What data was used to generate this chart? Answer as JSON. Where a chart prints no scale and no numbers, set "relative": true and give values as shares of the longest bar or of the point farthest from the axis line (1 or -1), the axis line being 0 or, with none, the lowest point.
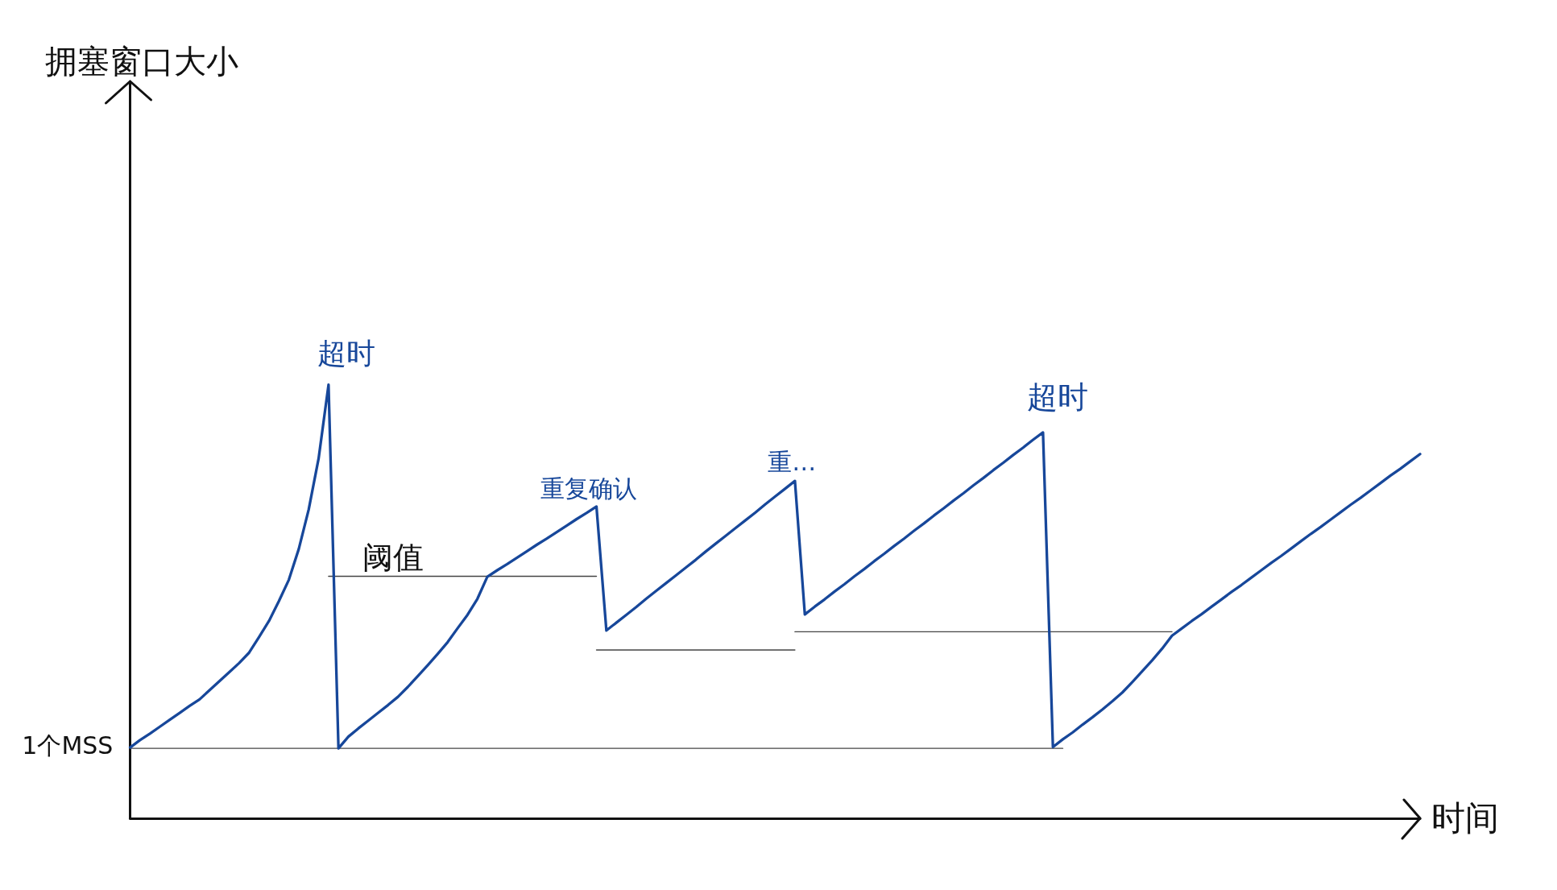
{
  "chart_data": {
    "type": "line",
    "xlabel": "时间",
    "relative": true,
    "marker": "none",
    "categories": [
      null,
      null,
      null,
      null,
      null,
      null,
      null,
      null,
      null,
      null,
      null,
      null,
      null,
      null,
      null,
      null,
      null,
      null,
      null,
      null,
      null,
      null,
      null,
      null,
      null,
      null,
      null,
      null,
      null,
      null,
      null,
      null,
      null,
      null,
      null,
      null,
      null,
      null,
      null,
      null,
      null,
      null,
      null,
      null,
      null,
      null,
      null,
      null,
      null,
      null,
      null,
      null,
      null,
      null,
      null,
      null,
      null,
      null,
      null,
      null,
      null,
      null,
      null,
      null,
      null,
      null,
      null,
      null,
      null,
      null,
      null,
      null,
      null,
      null,
      null,
      null,
      null,
      null,
      null,
      null,
      null,
      null,
      null,
      null,
      null,
      null,
      null,
      null,
      null,
      null,
      null,
      null,
      null,
      null,
      null,
      null,
      null,
      null,
      null,
      null,
      null,
      null,
      null,
      null,
      null,
      null,
      null,
      null,
      null,
      null,
      null,
      null,
      null,
      null,
      null,
      null,
      null,
      null,
      null,
      null,
      null,
      null,
      null,
      null,
      null,
      null,
      null,
      null,
      null,
      null,
      null
    ],
    "series": [
      {
        "color": "#17479a",
        "values": [
          0.163,
          0.18,
          0.195,
          0.211,
          0.227,
          0.243,
          0.259,
          0.274,
          0.295,
          0.316,
          0.337,
          0.358,
          0.382,
          0.418,
          0.455,
          0.501,
          0.55,
          0.621,
          0.712,
          0.83,
          1.0,
          0.161,
          0.188,
          0.207,
          0.225,
          0.243,
          0.261,
          0.28,
          0.303,
          0.328,
          0.353,
          0.379,
          0.406,
          0.438,
          0.469,
          0.506,
          0.557,
          0.572,
          0.586,
          0.601,
          0.616,
          0.631,
          0.645,
          0.66,
          0.675,
          0.69,
          0.704,
          0.719,
          0.433,
          0.451,
          0.469,
          0.487,
          0.506,
          0.524,
          0.542,
          0.56,
          0.578,
          0.596,
          0.615,
          0.633,
          0.651,
          0.669,
          0.687,
          0.705,
          0.724,
          0.742,
          0.76,
          0.778,
          0.47,
          0.488,
          0.505,
          0.523,
          0.54,
          0.558,
          0.575,
          0.593,
          0.61,
          0.628,
          0.645,
          0.663,
          0.68,
          0.698,
          0.715,
          0.733,
          0.75,
          0.768,
          0.785,
          0.803,
          0.82,
          0.838,
          0.855,
          0.873,
          0.89,
          0.164,
          0.182,
          0.198,
          0.216,
          0.233,
          0.251,
          0.27,
          0.29,
          0.314,
          0.339,
          0.364,
          0.391,
          0.421,
          0.438,
          0.455,
          0.471,
          0.488,
          0.505,
          0.522,
          0.538,
          0.555,
          0.572,
          0.589,
          0.605,
          0.622,
          0.639,
          0.656,
          0.672,
          0.689,
          0.706,
          0.723,
          0.739,
          0.756,
          0.773,
          0.79,
          0.806,
          0.823,
          0.84
        ]
      },
      {
        "color": "#444444",
        "values": [
          0.161,
          0.161,
          0.161,
          0.161,
          0.161,
          0.161,
          0.161,
          0.161,
          0.161,
          0.161,
          0.161,
          0.161,
          0.161,
          0.161,
          0.161,
          0.161,
          0.161,
          0.161,
          0.161,
          0.161,
          0.161,
          0.161,
          0.161,
          0.161,
          0.161,
          0.161,
          0.161,
          0.161,
          0.161,
          0.161,
          0.161,
          0.161,
          0.161,
          0.161,
          0.161,
          0.161,
          0.161,
          0.161,
          0.161,
          0.161,
          0.161,
          0.161,
          0.161,
          0.161,
          0.161,
          0.161,
          0.161,
          0.161,
          0.161,
          0.161,
          0.161,
          0.161,
          0.161,
          0.161,
          0.161,
          0.161,
          0.161,
          0.161,
          0.161,
          0.161,
          0.161,
          0.161,
          0.161,
          0.161,
          0.161,
          0.161,
          0.161,
          0.161,
          0.161,
          0.161,
          0.161,
          0.161,
          0.161,
          0.161,
          0.161,
          0.161,
          0.161,
          0.161,
          0.161,
          0.161,
          0.161,
          0.161,
          0.161,
          0.161,
          0.161,
          0.161,
          0.161,
          0.161,
          0.161,
          0.161,
          0.161,
          0.161,
          0.161,
          0.161,
          0.161,
          null,
          null,
          null,
          null,
          null,
          null,
          null,
          null,
          null,
          null,
          null,
          null,
          null,
          null,
          null,
          null,
          null,
          null,
          null,
          null,
          null,
          null,
          null,
          null,
          null,
          null,
          null,
          null,
          null,
          null,
          null,
          null,
          null,
          null,
          null,
          null
        ]
      },
      {
        "color": "#444444",
        "values": [
          null,
          null,
          null,
          null,
          null,
          null,
          null,
          null,
          null,
          null,
          null,
          null,
          null,
          null,
          null,
          null,
          null,
          null,
          null,
          null,
          0.558,
          0.558,
          0.558,
          0.558,
          0.558,
          0.558,
          0.558,
          0.558,
          0.558,
          0.558,
          0.558,
          0.558,
          0.558,
          0.558,
          0.558,
          0.558,
          0.558,
          0.558,
          0.558,
          0.558,
          0.558,
          0.558,
          0.558,
          0.558,
          0.558,
          0.558,
          0.558,
          0.558,
          null,
          null,
          null,
          null,
          null,
          null,
          null,
          null,
          null,
          null,
          null,
          null,
          null,
          null,
          null,
          null,
          null,
          null,
          null,
          null,
          null,
          null,
          null,
          null,
          null,
          null,
          null,
          null,
          null,
          null,
          null,
          null,
          null,
          null,
          null,
          null,
          null,
          null,
          null,
          null,
          null,
          null,
          null,
          null,
          null,
          null,
          null,
          null,
          null,
          null,
          null,
          null,
          null,
          null,
          null,
          null,
          null,
          null,
          null,
          null,
          null,
          null,
          null,
          null,
          null,
          null,
          null,
          null,
          null,
          null,
          null,
          null,
          null,
          null,
          null,
          null,
          null,
          null,
          null,
          null,
          null,
          null,
          null
        ]
      },
      {
        "color": "#444444",
        "values": [
          null,
          null,
          null,
          null,
          null,
          null,
          null,
          null,
          null,
          null,
          null,
          null,
          null,
          null,
          null,
          null,
          null,
          null,
          null,
          null,
          null,
          null,
          null,
          null,
          null,
          null,
          null,
          null,
          null,
          null,
          null,
          null,
          null,
          null,
          null,
          null,
          null,
          null,
          null,
          null,
          null,
          null,
          null,
          null,
          null,
          null,
          null,
          0.388,
          0.388,
          0.388,
          0.388,
          0.388,
          0.388,
          0.388,
          0.388,
          0.388,
          0.388,
          0.388,
          0.388,
          0.388,
          0.388,
          0.388,
          0.388,
          0.388,
          0.388,
          0.388,
          0.388,
          0.388,
          null,
          null,
          null,
          null,
          null,
          null,
          null,
          null,
          null,
          null,
          null,
          null,
          null,
          null,
          null,
          null,
          null,
          null,
          null,
          null,
          null,
          null,
          null,
          null,
          null,
          null,
          null,
          null,
          null,
          null,
          null,
          null,
          null,
          null,
          null,
          null,
          null,
          null,
          null,
          null,
          null,
          null,
          null,
          null,
          null,
          null,
          null,
          null,
          null,
          null,
          null,
          null,
          null,
          null,
          null,
          null,
          null,
          null,
          null,
          null,
          null,
          null,
          null
        ]
      },
      {
        "color": "#444444",
        "values": [
          null,
          null,
          null,
          null,
          null,
          null,
          null,
          null,
          null,
          null,
          null,
          null,
          null,
          null,
          null,
          null,
          null,
          null,
          null,
          null,
          null,
          null,
          null,
          null,
          null,
          null,
          null,
          null,
          null,
          null,
          null,
          null,
          null,
          null,
          null,
          null,
          null,
          null,
          null,
          null,
          null,
          null,
          null,
          null,
          null,
          null,
          null,
          null,
          null,
          null,
          null,
          null,
          null,
          null,
          null,
          null,
          null,
          null,
          null,
          null,
          null,
          null,
          null,
          null,
          null,
          null,
          null,
          0.43,
          0.43,
          0.43,
          0.43,
          0.43,
          0.43,
          0.43,
          0.43,
          0.43,
          0.43,
          0.43,
          0.43,
          0.43,
          0.43,
          0.43,
          0.43,
          0.43,
          0.43,
          0.43,
          0.43,
          0.43,
          0.43,
          0.43,
          0.43,
          0.43,
          0.43,
          0.43,
          0.43,
          0.43,
          0.43,
          0.43,
          0.43,
          0.43,
          0.43,
          0.43,
          0.43,
          0.43,
          0.43,
          0.43,
          null,
          null,
          null,
          null,
          null,
          null,
          null,
          null,
          null,
          null,
          null,
          null,
          null,
          null,
          null,
          null,
          null,
          null,
          null,
          null,
          null,
          null,
          null,
          null,
          null
        ]
      }
    ],
    "annotations": [
      "拥塞窗口大小",
      "1个MSS",
      "超时",
      {
        "text": "阈值",
        "y": 0.558
      },
      {
        "text": "重复确认",
        "y": 0.719
      },
      {
        "text": "重…",
        "y": 0.778
      },
      "超时"
    ]
  }
}
